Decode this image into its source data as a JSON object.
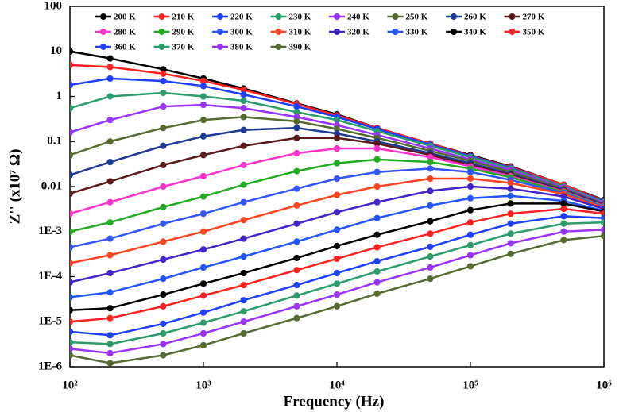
{
  "chart_data": {
    "type": "line",
    "xscale": "log",
    "yscale": "log",
    "xlabel": "Frequency (Hz)",
    "ylabel": "Z'' (x10⁷ Ω)",
    "xlim": [
      100,
      1000000
    ],
    "ylim": [
      1e-06,
      100
    ],
    "xticks": [
      {
        "value": 100,
        "label": "10²"
      },
      {
        "value": 1000,
        "label": "10³"
      },
      {
        "value": 10000,
        "label": "10⁴"
      },
      {
        "value": 100000,
        "label": "10⁵"
      },
      {
        "value": 1000000,
        "label": "10⁶"
      }
    ],
    "yticks": [
      100,
      10,
      1,
      0.1,
      0.01,
      {
        "value": 0.001,
        "label": "1E-3"
      },
      {
        "value": 0.0001,
        "label": "1E-4"
      },
      {
        "value": 1e-05,
        "label": "1E-5"
      },
      {
        "value": 1e-06,
        "label": "1E-6"
      }
    ],
    "x": [
      100,
      200,
      500,
      1000,
      2000,
      5000,
      10000,
      20000,
      50000,
      100000,
      200000,
      500000,
      1000000
    ],
    "series": [
      {
        "name": "200 K",
        "color": "#000000",
        "values": [
          10,
          7,
          4,
          2.5,
          1.5,
          0.7,
          0.4,
          0.2,
          0.09,
          0.05,
          0.028,
          0.011,
          0.005
        ]
      },
      {
        "name": "210 K",
        "color": "#ff2020",
        "values": [
          5,
          4.5,
          3.2,
          2.2,
          1.4,
          0.68,
          0.38,
          0.2,
          0.09,
          0.048,
          0.027,
          0.011,
          0.0048
        ]
      },
      {
        "name": "220 K",
        "color": "#1f3fff",
        "values": [
          1.8,
          2.5,
          2.2,
          1.7,
          1.1,
          0.6,
          0.35,
          0.19,
          0.085,
          0.047,
          0.026,
          0.01,
          0.0047
        ]
      },
      {
        "name": "230 K",
        "color": "#2a9d6a",
        "values": [
          0.55,
          1.0,
          1.2,
          1.0,
          0.8,
          0.45,
          0.3,
          0.17,
          0.08,
          0.045,
          0.025,
          0.01,
          0.0045
        ]
      },
      {
        "name": "240 K",
        "color": "#9933ff",
        "values": [
          0.16,
          0.3,
          0.6,
          0.65,
          0.55,
          0.35,
          0.23,
          0.14,
          0.07,
          0.04,
          0.023,
          0.0095,
          0.0043
        ]
      },
      {
        "name": "250 K",
        "color": "#556b2f",
        "values": [
          0.05,
          0.1,
          0.2,
          0.3,
          0.35,
          0.28,
          0.19,
          0.12,
          0.062,
          0.037,
          0.021,
          0.009,
          0.0041
        ]
      },
      {
        "name": "260 K",
        "color": "#1f3a93",
        "values": [
          0.018,
          0.035,
          0.08,
          0.13,
          0.18,
          0.2,
          0.15,
          0.1,
          0.055,
          0.033,
          0.019,
          0.0085,
          0.004
        ]
      },
      {
        "name": "270 K",
        "color": "#5a1a1a",
        "values": [
          0.007,
          0.013,
          0.03,
          0.05,
          0.08,
          0.12,
          0.12,
          0.09,
          0.05,
          0.03,
          0.018,
          0.008,
          0.0038
        ]
      },
      {
        "name": "280 K",
        "color": "#ff33cc",
        "values": [
          0.0025,
          0.0045,
          0.01,
          0.017,
          0.03,
          0.055,
          0.07,
          0.07,
          0.045,
          0.028,
          0.017,
          0.0078,
          0.0037
        ]
      },
      {
        "name": "290 K",
        "color": "#22aa22",
        "values": [
          0.001,
          0.0016,
          0.0035,
          0.006,
          0.011,
          0.022,
          0.033,
          0.04,
          0.035,
          0.025,
          0.016,
          0.0075,
          0.0036
        ]
      },
      {
        "name": "300 K",
        "color": "#3355ff",
        "values": [
          0.00045,
          0.0007,
          0.0015,
          0.0025,
          0.0045,
          0.009,
          0.015,
          0.021,
          0.025,
          0.021,
          0.014,
          0.0072,
          0.0035
        ]
      },
      {
        "name": "310 K",
        "color": "#ff4422",
        "values": [
          0.0002,
          0.0003,
          0.0006,
          0.001,
          0.0018,
          0.0038,
          0.0065,
          0.01,
          0.015,
          0.015,
          0.012,
          0.0068,
          0.0034
        ]
      },
      {
        "name": "320 K",
        "color": "#4422cc",
        "values": [
          7.5e-05,
          0.00012,
          0.00024,
          0.0004,
          0.0007,
          0.0015,
          0.0027,
          0.0045,
          0.008,
          0.01,
          0.009,
          0.006,
          0.0032
        ]
      },
      {
        "name": "330 K",
        "color": "#2255ff",
        "values": [
          3.5e-05,
          4.5e-05,
          9e-05,
          0.00016,
          0.00028,
          0.0006,
          0.0011,
          0.002,
          0.0038,
          0.0055,
          0.0062,
          0.0048,
          0.0029
        ]
      },
      {
        "name": "340 K",
        "color": "#000000",
        "values": [
          1.8e-05,
          2e-05,
          4e-05,
          7e-05,
          0.00012,
          0.00026,
          0.00048,
          0.00085,
          0.0017,
          0.003,
          0.0042,
          0.0042,
          0.0028
        ]
      },
      {
        "name": "350 K",
        "color": "#ff2020",
        "values": [
          1e-05,
          1.2e-05,
          2.2e-05,
          3.8e-05,
          6.5e-05,
          0.00014,
          0.00025,
          0.00045,
          0.0009,
          0.0016,
          0.0025,
          0.0032,
          0.0025
        ]
      },
      {
        "name": "360 K",
        "color": "#1f3fff",
        "values": [
          6e-06,
          5e-06,
          9e-06,
          1.6e-05,
          3e-05,
          6.5e-05,
          0.00012,
          0.00022,
          0.00046,
          0.00085,
          0.0015,
          0.0022,
          0.002
        ]
      },
      {
        "name": "370 K",
        "color": "#2a9d6a",
        "values": [
          3.5e-06,
          3.2e-06,
          5.5e-06,
          9.5e-06,
          1.7e-05,
          3.8e-05,
          7e-05,
          0.00013,
          0.00028,
          0.0005,
          0.0009,
          0.0015,
          0.0016
        ]
      },
      {
        "name": "380 K",
        "color": "#9933ff",
        "values": [
          2.5e-06,
          2e-06,
          3.2e-06,
          5.5e-06,
          1e-05,
          2.2e-05,
          4e-05,
          7.5e-05,
          0.00016,
          0.0003,
          0.00055,
          0.001,
          0.0011
        ]
      },
      {
        "name": "390 K",
        "color": "#556b2f",
        "values": [
          1.8e-06,
          1.2e-06,
          1.8e-06,
          3e-06,
          5.5e-06,
          1.2e-05,
          2.2e-05,
          4.2e-05,
          9e-05,
          0.00017,
          0.00032,
          0.00065,
          0.0008
        ]
      }
    ]
  }
}
